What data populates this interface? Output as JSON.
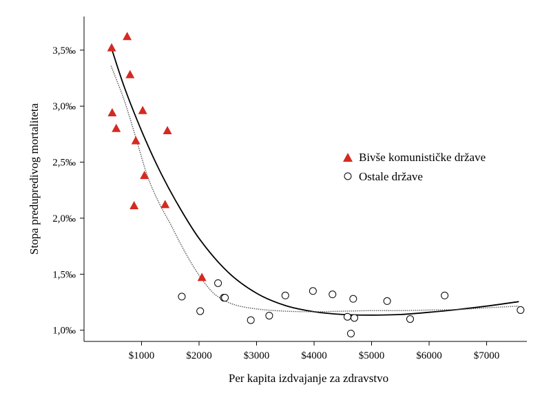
{
  "chart_data": {
    "type": "scatter",
    "xlabel": "Per kapita izdvajanje za zdravstvo",
    "ylabel": "Stopa predupredivog mortaliteta",
    "xlim": [
      0,
      7700
    ],
    "ylim": [
      0.9,
      3.8
    ],
    "x_ticks": [
      {
        "value": 1000,
        "label": "$1000"
      },
      {
        "value": 2000,
        "label": "$2000"
      },
      {
        "value": 3000,
        "label": "$3000"
      },
      {
        "value": 4000,
        "label": "$4000"
      },
      {
        "value": 5000,
        "label": "$5000"
      },
      {
        "value": 6000,
        "label": "$6000"
      },
      {
        "value": 7000,
        "label": "$7000"
      }
    ],
    "y_ticks": [
      {
        "value": 1.0,
        "label": "1,0‰"
      },
      {
        "value": 1.5,
        "label": "1,5‰"
      },
      {
        "value": 2.0,
        "label": "2,0‰"
      },
      {
        "value": 2.5,
        "label": "2,5‰"
      },
      {
        "value": 3.0,
        "label": "3,0‰"
      },
      {
        "value": 3.5,
        "label": "3,5‰"
      }
    ],
    "grid": false,
    "legend_position": "right",
    "series": [
      {
        "name": "Bivše komunističke države",
        "marker": "triangle",
        "color": "#d42a22",
        "points": [
          {
            "x": 480,
            "y": 3.52
          },
          {
            "x": 750,
            "y": 3.62
          },
          {
            "x": 800,
            "y": 3.28
          },
          {
            "x": 490,
            "y": 2.94
          },
          {
            "x": 560,
            "y": 2.8
          },
          {
            "x": 1020,
            "y": 2.96
          },
          {
            "x": 900,
            "y": 2.69
          },
          {
            "x": 1450,
            "y": 2.78
          },
          {
            "x": 1050,
            "y": 2.38
          },
          {
            "x": 870,
            "y": 2.11
          },
          {
            "x": 1410,
            "y": 2.12
          },
          {
            "x": 2050,
            "y": 1.47
          }
        ]
      },
      {
        "name": "Ostale države",
        "marker": "circle",
        "color": "#000000",
        "points": [
          {
            "x": 1700,
            "y": 1.3
          },
          {
            "x": 2020,
            "y": 1.17
          },
          {
            "x": 2330,
            "y": 1.42
          },
          {
            "x": 2430,
            "y": 1.29
          },
          {
            "x": 2450,
            "y": 1.29
          },
          {
            "x": 2900,
            "y": 1.09
          },
          {
            "x": 3220,
            "y": 1.13
          },
          {
            "x": 3500,
            "y": 1.31
          },
          {
            "x": 3980,
            "y": 1.35
          },
          {
            "x": 4320,
            "y": 1.32
          },
          {
            "x": 4580,
            "y": 1.12
          },
          {
            "x": 4640,
            "y": 0.97
          },
          {
            "x": 4680,
            "y": 1.28
          },
          {
            "x": 4700,
            "y": 1.11
          },
          {
            "x": 5270,
            "y": 1.26
          },
          {
            "x": 5670,
            "y": 1.1
          },
          {
            "x": 6270,
            "y": 1.31
          },
          {
            "x": 7590,
            "y": 1.18
          }
        ]
      }
    ],
    "fit_lines": [
      {
        "style": "solid",
        "color": "#000000",
        "points": [
          [
            470,
            3.53
          ],
          [
            700,
            3.17
          ],
          [
            1000,
            2.78
          ],
          [
            1300,
            2.44
          ],
          [
            1600,
            2.15
          ],
          [
            2000,
            1.82
          ],
          [
            2500,
            1.52
          ],
          [
            3000,
            1.33
          ],
          [
            3500,
            1.22
          ],
          [
            4000,
            1.165
          ],
          [
            4500,
            1.14
          ],
          [
            5000,
            1.135
          ],
          [
            5500,
            1.14
          ],
          [
            6000,
            1.16
          ],
          [
            6500,
            1.185
          ],
          [
            7000,
            1.215
          ],
          [
            7560,
            1.255
          ]
        ]
      },
      {
        "style": "dotted",
        "color": "#555555",
        "points": [
          [
            470,
            3.36
          ],
          [
            700,
            3.05
          ],
          [
            900,
            2.72
          ],
          [
            1100,
            2.38
          ],
          [
            1300,
            2.14
          ],
          [
            1500,
            1.95
          ],
          [
            1700,
            1.75
          ],
          [
            1900,
            1.57
          ],
          [
            2100,
            1.42
          ],
          [
            2300,
            1.31
          ],
          [
            2600,
            1.23
          ],
          [
            3000,
            1.19
          ],
          [
            3500,
            1.17
          ],
          [
            4000,
            1.165
          ],
          [
            4500,
            1.17
          ],
          [
            5000,
            1.175
          ],
          [
            5500,
            1.175
          ],
          [
            6000,
            1.18
          ],
          [
            6500,
            1.185
          ],
          [
            7000,
            1.2
          ],
          [
            7560,
            1.215
          ]
        ]
      }
    ]
  }
}
